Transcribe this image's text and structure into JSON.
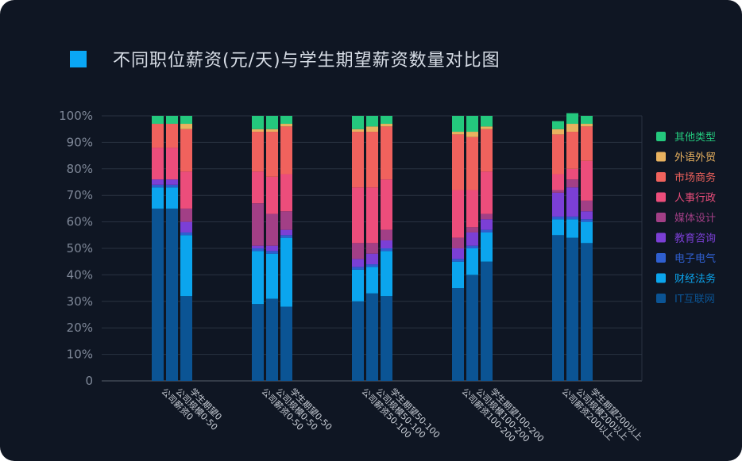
{
  "chart_data": {
    "type": "bar",
    "stacked": true,
    "normalized": true,
    "title": "不同职位薪资(元/天)与学生期望薪资数量对比图",
    "ylim": [
      0,
      100
    ],
    "yticks": [
      "0",
      "10%",
      "20%",
      "30%",
      "40%",
      "50%",
      "60%",
      "70%",
      "80%",
      "90%",
      "100%"
    ],
    "legend_position": "right",
    "categories": [
      "公司薪资0",
      "公司规模0-50",
      "学生期望0",
      "公司薪资0-50",
      "公司规模0-50",
      "学生期望0-50",
      "公司薪资50-100",
      "公司规模50-100",
      "学生期望50-100",
      "公司薪资100-200",
      "公司规模100-200",
      "学生期望100-200",
      "公司薪资200以上",
      "公司规模200以上",
      "学生期望200以上"
    ],
    "series": [
      {
        "name": "IT互联网",
        "color": "#0b5494",
        "values": [
          65,
          65,
          32,
          29,
          31,
          28,
          30,
          33,
          32,
          35,
          40,
          45,
          55,
          54,
          52
        ]
      },
      {
        "name": "财经法务",
        "color": "#0ba5ee",
        "values": [
          8,
          8,
          23,
          20,
          17,
          26,
          12,
          10,
          17,
          10,
          10,
          11,
          6,
          7,
          8
        ]
      },
      {
        "name": "电子电气",
        "color": "#2f5fd0",
        "values": [
          1,
          1,
          1,
          1,
          1,
          1,
          1,
          1,
          1,
          1,
          1,
          1,
          1,
          1,
          1
        ]
      },
      {
        "name": "教育咨询",
        "color": "#7b3fd6",
        "values": [
          2,
          2,
          4,
          1,
          2,
          2,
          3,
          4,
          3,
          4,
          5,
          4,
          9,
          11,
          3
        ]
      },
      {
        "name": "媒体设计",
        "color": "#a23f86",
        "values": [
          0,
          0,
          5,
          16,
          12,
          7,
          6,
          4,
          4,
          4,
          2,
          2,
          1,
          3,
          4
        ]
      },
      {
        "name": "人事行政",
        "color": "#ec4d7b",
        "values": [
          12,
          12,
          14,
          12,
          14,
          14,
          21,
          21,
          19,
          18,
          14,
          16,
          6,
          4,
          15
        ]
      },
      {
        "name": "市场商务",
        "color": "#f0625d",
        "values": [
          9,
          9,
          16,
          15,
          17,
          18,
          21,
          21,
          20,
          21,
          20,
          16,
          15,
          14,
          13
        ]
      },
      {
        "name": "外语外贸",
        "color": "#e9b25f",
        "values": [
          0,
          0,
          2,
          1,
          1,
          1,
          1,
          2,
          1,
          1,
          2,
          1,
          2,
          3,
          1
        ]
      },
      {
        "name": "其他类型",
        "color": "#24c87d",
        "values": [
          3,
          3,
          3,
          5,
          5,
          3,
          5,
          4,
          3,
          6,
          6,
          4,
          3,
          4,
          3
        ]
      }
    ]
  }
}
